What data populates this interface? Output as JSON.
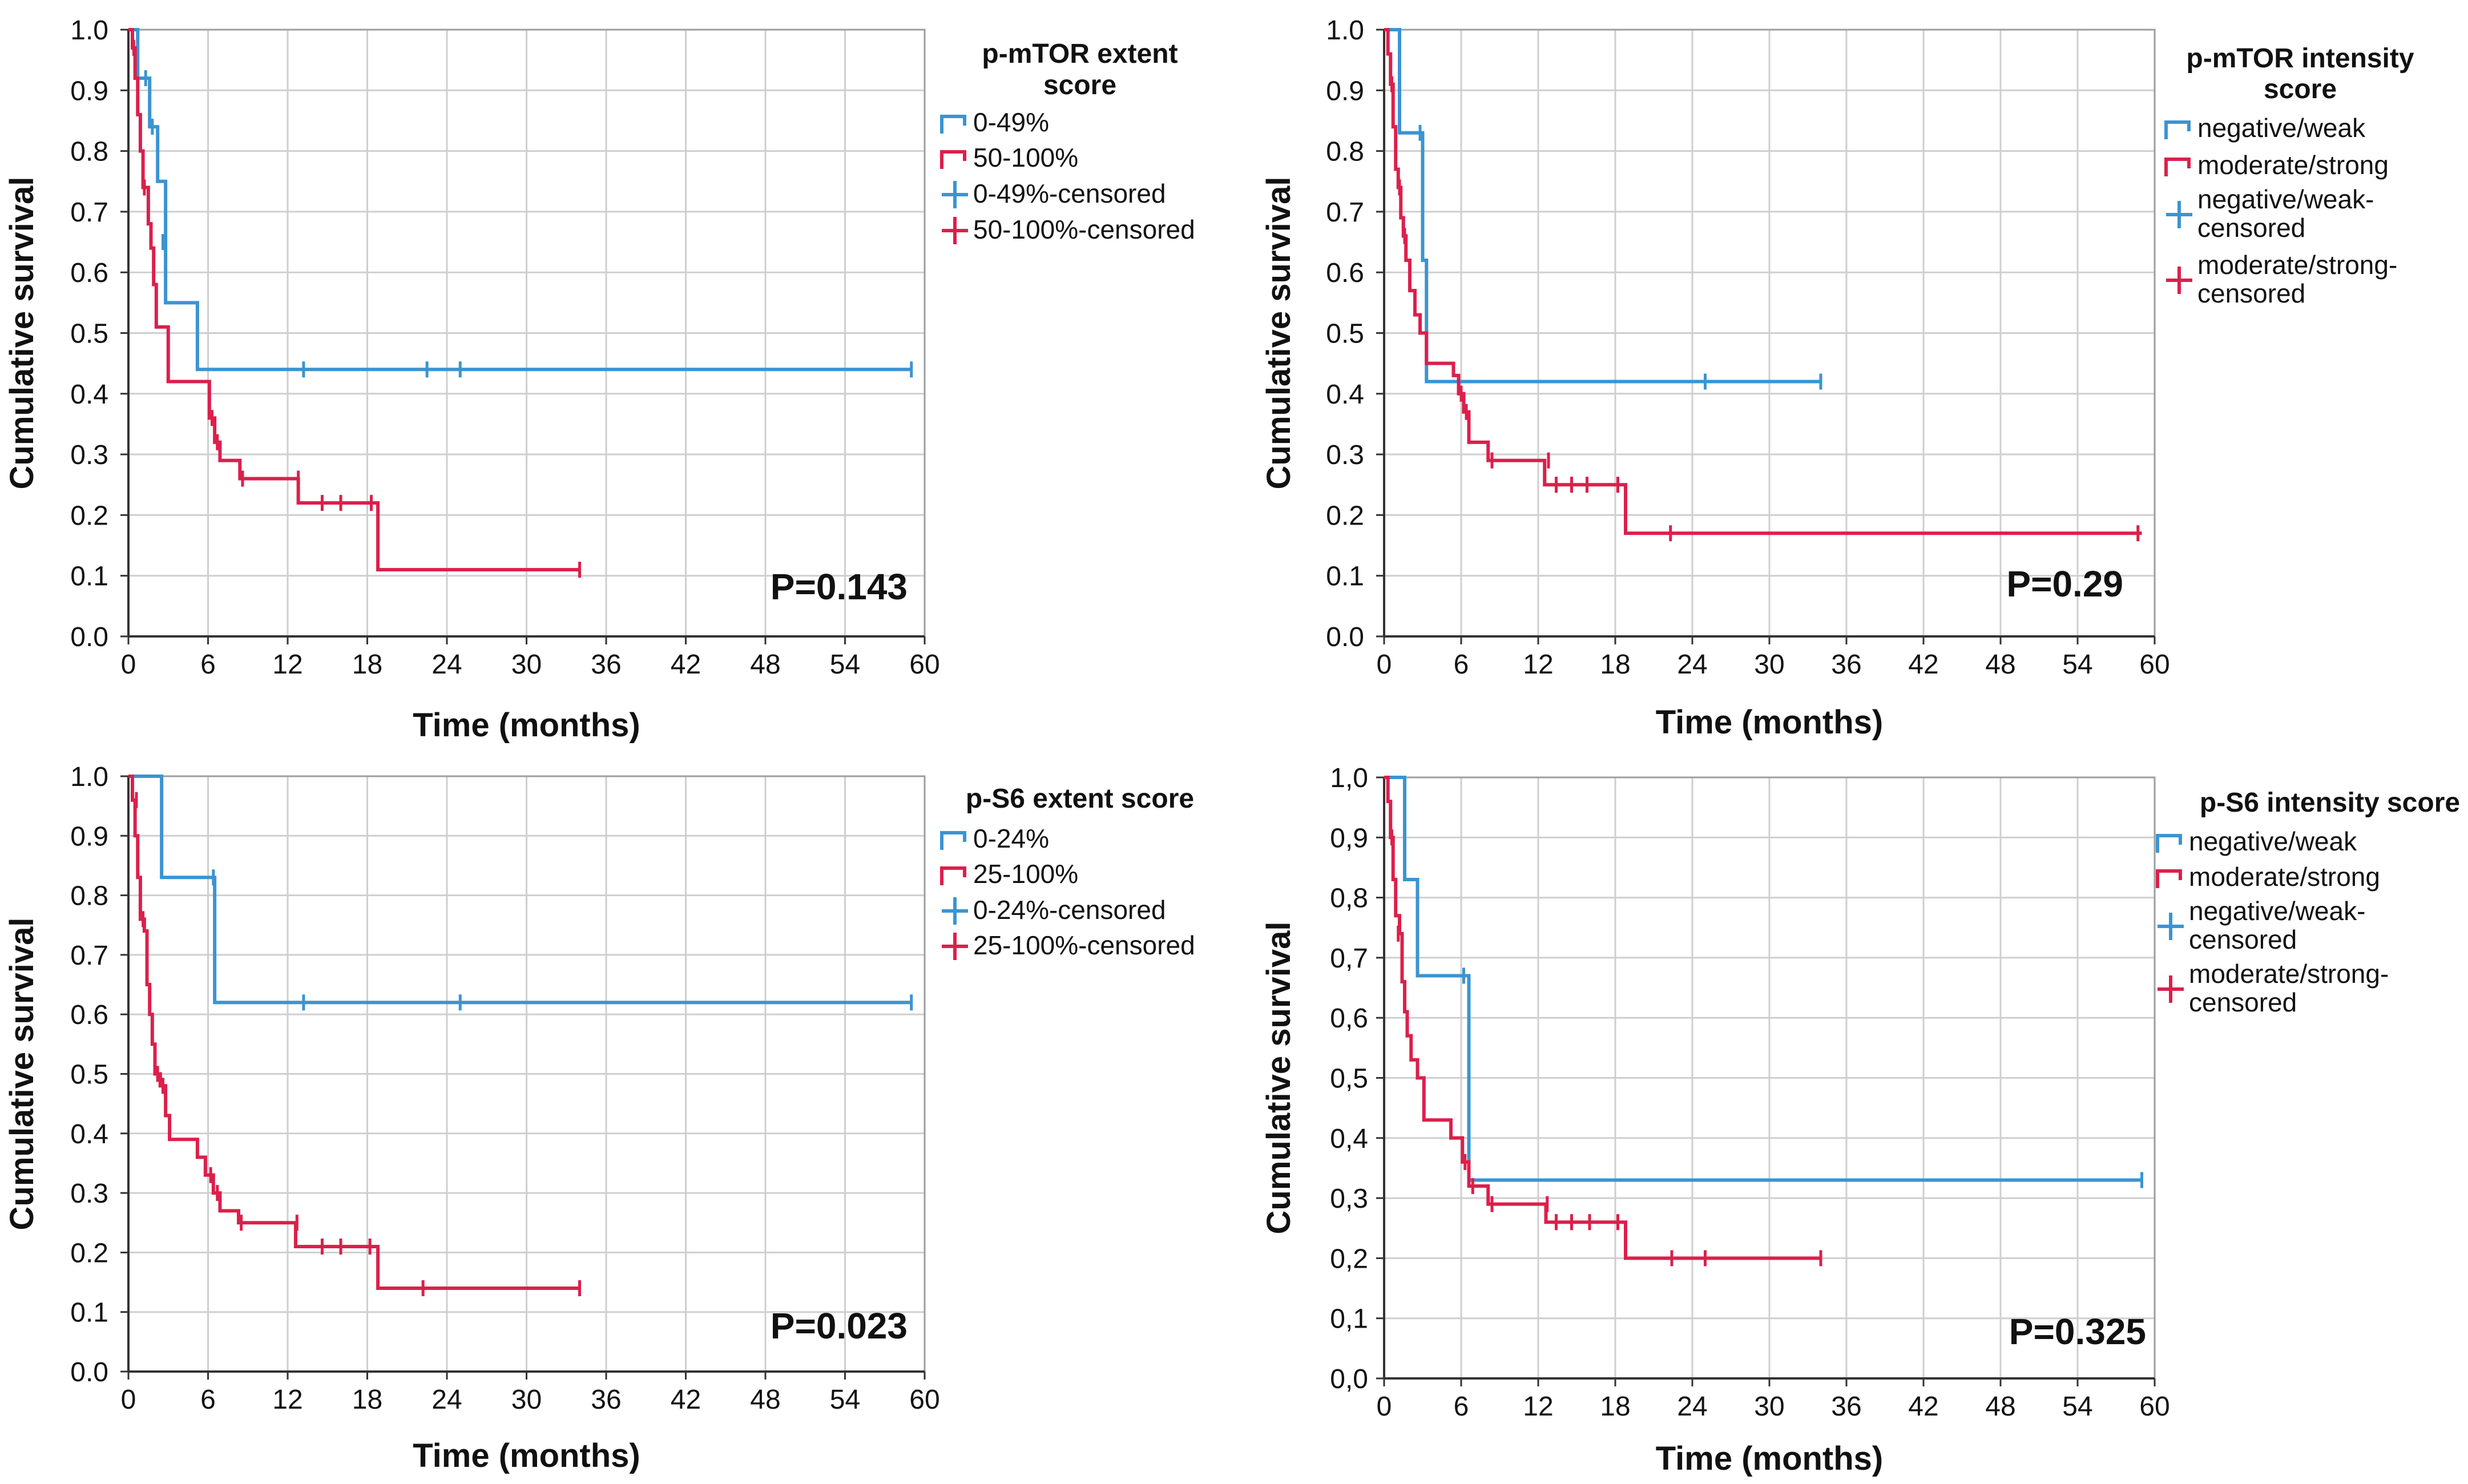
{
  "colors": {
    "blue": "#3b94d2",
    "red": "#dc1f4b",
    "grid": "#cfcfcf",
    "axis": "#333333",
    "plot_bg": "#ffffff"
  },
  "chart_data": [
    {
      "type": "line",
      "subtype": "kaplan-meier",
      "legend_title": [
        "p-mTOR extent",
        "score"
      ],
      "xlabel": "Time (months)",
      "ylabel": "Cumulative survival",
      "xlim": [
        0,
        60
      ],
      "ylim": [
        0,
        1
      ],
      "xticks": [
        "0",
        "6",
        "12",
        "18",
        "24",
        "30",
        "36",
        "42",
        "48",
        "54",
        "60"
      ],
      "yticks": [
        "0.0",
        "0.1",
        "0.2",
        "0.3",
        "0.4",
        "0.5",
        "0.6",
        "0.7",
        "0.8",
        "0.9",
        "1.0"
      ],
      "pvalue": "P=0.143",
      "legend": [
        {
          "label": [
            "0-49%"
          ],
          "kind": "step",
          "color": "blue"
        },
        {
          "label": [
            "50-100%"
          ],
          "kind": "step",
          "color": "red"
        },
        {
          "label": [
            "0-49%-censored"
          ],
          "kind": "censor",
          "color": "blue"
        },
        {
          "label": [
            "50-100%-censored"
          ],
          "kind": "censor",
          "color": "red"
        }
      ],
      "series": [
        {
          "name": "0-49%",
          "color": "blue",
          "steps": [
            [
              0,
              1.0
            ],
            [
              0.7,
              0.92
            ],
            [
              1.6,
              0.84
            ],
            [
              2.2,
              0.75
            ],
            [
              2.8,
              0.55
            ],
            [
              5.2,
              0.44
            ],
            [
              59,
              0.44
            ]
          ],
          "censored": [
            [
              1.3,
              0.92
            ],
            [
              1.8,
              0.84
            ],
            [
              2.6,
              0.65
            ],
            [
              13.2,
              0.44
            ],
            [
              22.5,
              0.44
            ],
            [
              25,
              0.44
            ],
            [
              59,
              0.44
            ]
          ]
        },
        {
          "name": "50-100%",
          "color": "red",
          "steps": [
            [
              0,
              1.0
            ],
            [
              0.3,
              0.97
            ],
            [
              0.5,
              0.92
            ],
            [
              0.7,
              0.86
            ],
            [
              0.9,
              0.8
            ],
            [
              1.1,
              0.74
            ],
            [
              1.5,
              0.68
            ],
            [
              1.7,
              0.64
            ],
            [
              1.9,
              0.58
            ],
            [
              2.1,
              0.51
            ],
            [
              3.0,
              0.42
            ],
            [
              6.1,
              0.36
            ],
            [
              6.5,
              0.32
            ],
            [
              6.9,
              0.29
            ],
            [
              8.4,
              0.26
            ],
            [
              12.8,
              0.22
            ],
            [
              18.8,
              0.11
            ],
            [
              34,
              0.11
            ]
          ],
          "censored": [
            [
              0.4,
              0.97
            ],
            [
              1.2,
              0.74
            ],
            [
              6.3,
              0.36
            ],
            [
              6.7,
              0.32
            ],
            [
              8.6,
              0.26
            ],
            [
              12.8,
              0.26
            ],
            [
              14.6,
              0.22
            ],
            [
              16,
              0.22
            ],
            [
              18.3,
              0.22
            ],
            [
              34,
              0.11
            ]
          ]
        }
      ]
    },
    {
      "type": "line",
      "subtype": "kaplan-meier",
      "legend_title": [
        "p-mTOR intensity",
        "score"
      ],
      "xlabel": "Time (months)",
      "ylabel": "Cumulative survival",
      "xlim": [
        0,
        60
      ],
      "ylim": [
        0,
        1
      ],
      "xticks": [
        "0",
        "6",
        "12",
        "18",
        "24",
        "30",
        "36",
        "42",
        "48",
        "54",
        "60"
      ],
      "yticks": [
        "0.0",
        "0.1",
        "0.2",
        "0.3",
        "0.4",
        "0.5",
        "0.6",
        "0.7",
        "0.8",
        "0.9",
        "1.0"
      ],
      "pvalue": "P=0.29",
      "legend": [
        {
          "label": [
            "negative/weak"
          ],
          "kind": "step",
          "color": "blue"
        },
        {
          "label": [
            "moderate/strong"
          ],
          "kind": "step",
          "color": "red"
        },
        {
          "label": [
            "negative/weak-",
            "censored"
          ],
          "kind": "censor",
          "color": "blue"
        },
        {
          "label": [
            "moderate/strong-",
            "censored"
          ],
          "kind": "censor",
          "color": "red"
        }
      ],
      "series": [
        {
          "name": "negative/weak",
          "color": "blue",
          "steps": [
            [
              0,
              1.0
            ],
            [
              1.2,
              0.83
            ],
            [
              3.0,
              0.62
            ],
            [
              3.3,
              0.42
            ],
            [
              34,
              0.42
            ]
          ],
          "censored": [
            [
              2.8,
              0.83
            ],
            [
              25,
              0.42
            ],
            [
              34,
              0.42
            ]
          ]
        },
        {
          "name": "moderate/strong",
          "color": "red",
          "steps": [
            [
              0,
              1.0
            ],
            [
              0.3,
              0.96
            ],
            [
              0.5,
              0.91
            ],
            [
              0.7,
              0.84
            ],
            [
              0.9,
              0.77
            ],
            [
              1.1,
              0.74
            ],
            [
              1.3,
              0.69
            ],
            [
              1.5,
              0.66
            ],
            [
              1.7,
              0.62
            ],
            [
              2.0,
              0.57
            ],
            [
              2.4,
              0.53
            ],
            [
              2.8,
              0.5
            ],
            [
              3.3,
              0.45
            ],
            [
              5.4,
              0.43
            ],
            [
              5.8,
              0.4
            ],
            [
              6.2,
              0.37
            ],
            [
              6.6,
              0.32
            ],
            [
              8.1,
              0.29
            ],
            [
              12.5,
              0.25
            ],
            [
              18.8,
              0.17
            ],
            [
              59,
              0.17
            ]
          ],
          "censored": [
            [
              0.6,
              0.91
            ],
            [
              1.2,
              0.74
            ],
            [
              1.6,
              0.66
            ],
            [
              6.0,
              0.4
            ],
            [
              6.4,
              0.37
            ],
            [
              8.4,
              0.29
            ],
            [
              12.8,
              0.29
            ],
            [
              13.4,
              0.25
            ],
            [
              14.6,
              0.25
            ],
            [
              15.8,
              0.25
            ],
            [
              18.2,
              0.25
            ],
            [
              22.3,
              0.17
            ],
            [
              58.7,
              0.17
            ]
          ]
        }
      ]
    },
    {
      "type": "line",
      "subtype": "kaplan-meier",
      "legend_title": [
        "p-S6 extent score"
      ],
      "xlabel": "Time (months)",
      "ylabel": "Cumulative survival",
      "xlim": [
        0,
        60
      ],
      "ylim": [
        0,
        1
      ],
      "xticks": [
        "0",
        "6",
        "12",
        "18",
        "24",
        "30",
        "36",
        "42",
        "48",
        "54",
        "60"
      ],
      "yticks": [
        "0.0",
        "0.1",
        "0.2",
        "0.3",
        "0.4",
        "0.5",
        "0.6",
        "0.7",
        "0.8",
        "0.9",
        "1.0"
      ],
      "pvalue": "P=0.023",
      "legend": [
        {
          "label": [
            "0-24%"
          ],
          "kind": "step",
          "color": "blue"
        },
        {
          "label": [
            "25-100%"
          ],
          "kind": "step",
          "color": "red"
        },
        {
          "label": [
            "0-24%-censored"
          ],
          "kind": "censor",
          "color": "blue"
        },
        {
          "label": [
            "25-100%-censored"
          ],
          "kind": "censor",
          "color": "red"
        }
      ],
      "series": [
        {
          "name": "0-24%",
          "color": "blue",
          "steps": [
            [
              0,
              1.0
            ],
            [
              2.5,
              0.83
            ],
            [
              6.5,
              0.62
            ],
            [
              59,
              0.62
            ]
          ],
          "censored": [
            [
              6.4,
              0.83
            ],
            [
              13.2,
              0.62
            ],
            [
              25,
              0.62
            ],
            [
              59,
              0.62
            ]
          ]
        },
        {
          "name": "25-100%",
          "color": "red",
          "steps": [
            [
              0,
              1.0
            ],
            [
              0.3,
              0.96
            ],
            [
              0.5,
              0.9
            ],
            [
              0.7,
              0.83
            ],
            [
              0.9,
              0.76
            ],
            [
              1.2,
              0.74
            ],
            [
              1.4,
              0.65
            ],
            [
              1.6,
              0.6
            ],
            [
              1.8,
              0.55
            ],
            [
              2.0,
              0.5
            ],
            [
              2.4,
              0.48
            ],
            [
              2.8,
              0.43
            ],
            [
              3.1,
              0.39
            ],
            [
              5.2,
              0.36
            ],
            [
              5.8,
              0.33
            ],
            [
              6.4,
              0.3
            ],
            [
              6.9,
              0.27
            ],
            [
              8.3,
              0.25
            ],
            [
              12.6,
              0.21
            ],
            [
              18.8,
              0.14
            ],
            [
              34,
              0.14
            ]
          ],
          "censored": [
            [
              0.6,
              0.96
            ],
            [
              1.1,
              0.76
            ],
            [
              2.2,
              0.5
            ],
            [
              2.6,
              0.48
            ],
            [
              6.2,
              0.33
            ],
            [
              6.7,
              0.3
            ],
            [
              8.5,
              0.25
            ],
            [
              12.7,
              0.25
            ],
            [
              14.6,
              0.21
            ],
            [
              16,
              0.21
            ],
            [
              18.2,
              0.21
            ],
            [
              22.2,
              0.14
            ],
            [
              34,
              0.14
            ]
          ]
        }
      ]
    },
    {
      "type": "line",
      "subtype": "kaplan-meier",
      "legend_title": [
        "p-S6 intensity score"
      ],
      "xlabel": "Time (months)",
      "ylabel": "Cumulative survival",
      "xlim": [
        0,
        60
      ],
      "ylim": [
        0,
        1
      ],
      "xticks": [
        "0",
        "6",
        "12",
        "18",
        "24",
        "30",
        "36",
        "42",
        "48",
        "54",
        "60"
      ],
      "yticks": [
        "0,0",
        "0,1",
        "0,2",
        "0,3",
        "0,4",
        "0,5",
        "0,6",
        "0,7",
        "0,8",
        "0,9",
        "1,0"
      ],
      "pvalue": "P=0.325",
      "legend": [
        {
          "label": [
            "negative/weak"
          ],
          "kind": "step",
          "color": "blue"
        },
        {
          "label": [
            "moderate/strong"
          ],
          "kind": "step",
          "color": "red"
        },
        {
          "label": [
            "negative/weak-",
            "censored"
          ],
          "kind": "censor",
          "color": "blue"
        },
        {
          "label": [
            "moderate/strong-",
            "censored"
          ],
          "kind": "censor",
          "color": "red"
        }
      ],
      "series": [
        {
          "name": "negative/weak",
          "color": "blue",
          "steps": [
            [
              0,
              1.0
            ],
            [
              1.6,
              0.83
            ],
            [
              2.6,
              0.67
            ],
            [
              6.6,
              0.33
            ],
            [
              59,
              0.33
            ]
          ],
          "censored": [
            [
              6.2,
              0.67
            ],
            [
              59,
              0.33
            ]
          ]
        },
        {
          "name": "moderate/strong",
          "color": "red",
          "steps": [
            [
              0,
              1.0
            ],
            [
              0.3,
              0.96
            ],
            [
              0.5,
              0.9
            ],
            [
              0.7,
              0.83
            ],
            [
              0.9,
              0.77
            ],
            [
              1.2,
              0.74
            ],
            [
              1.4,
              0.66
            ],
            [
              1.6,
              0.61
            ],
            [
              1.8,
              0.57
            ],
            [
              2.1,
              0.53
            ],
            [
              2.6,
              0.5
            ],
            [
              3.1,
              0.43
            ],
            [
              5.2,
              0.4
            ],
            [
              6.1,
              0.36
            ],
            [
              6.6,
              0.32
            ],
            [
              8.1,
              0.29
            ],
            [
              12.6,
              0.26
            ],
            [
              18.8,
              0.2
            ],
            [
              34,
              0.2
            ]
          ],
          "censored": [
            [
              0.6,
              0.9
            ],
            [
              1.1,
              0.74
            ],
            [
              6.3,
              0.36
            ],
            [
              6.9,
              0.32
            ],
            [
              8.4,
              0.29
            ],
            [
              12.7,
              0.29
            ],
            [
              13.4,
              0.26
            ],
            [
              14.6,
              0.26
            ],
            [
              16,
              0.26
            ],
            [
              18.2,
              0.26
            ],
            [
              22.4,
              0.2
            ],
            [
              25,
              0.2
            ],
            [
              34,
              0.2
            ]
          ]
        }
      ]
    }
  ]
}
